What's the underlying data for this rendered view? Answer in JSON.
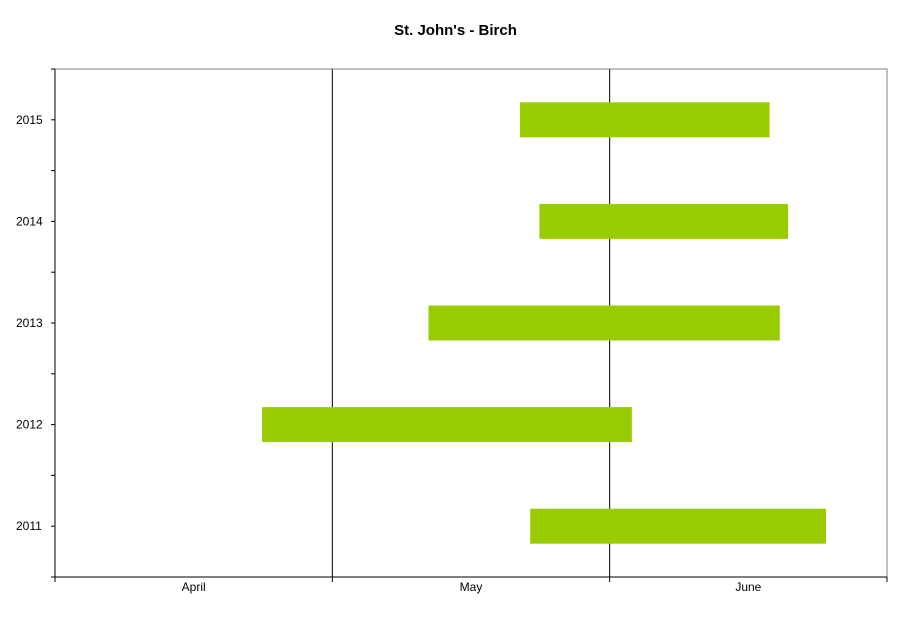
{
  "chart_data": {
    "type": "bar",
    "orientation": "horizontal-range",
    "title": "St. John's - Birch",
    "xlabel": "",
    "ylabel": "",
    "x_axis": {
      "ticks": [
        "April",
        "May",
        "June"
      ],
      "range_days": [
        0,
        90
      ]
    },
    "categories": [
      "2015",
      "2014",
      "2013",
      "2012",
      "2011"
    ],
    "series": [
      {
        "color": "#99cc00",
        "ranges": [
          {
            "category": "2015",
            "start": 50.3,
            "end": 77.3
          },
          {
            "category": "2014",
            "start": 52.4,
            "end": 79.3
          },
          {
            "category": "2013",
            "start": 40.4,
            "end": 78.4
          },
          {
            "category": "2012",
            "start": 22.4,
            "end": 62.4
          },
          {
            "category": "2011",
            "start": 51.4,
            "end": 83.4
          }
        ]
      }
    ],
    "grid": {
      "x": true,
      "y": false
    },
    "legend": "none"
  }
}
